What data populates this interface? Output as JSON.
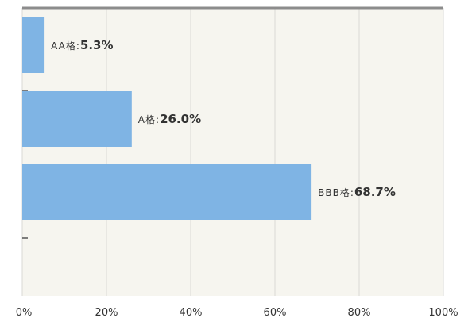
{
  "chart_data": {
    "type": "bar",
    "orientation": "horizontal",
    "categories": [
      "AA格",
      "A格",
      "BBB格"
    ],
    "values": [
      5.3,
      26.0,
      68.7
    ],
    "data_labels": [
      "5.3%",
      "26.0%",
      "68.7%"
    ],
    "separator": ":",
    "x_ticks": [
      "0%",
      "20%",
      "40%",
      "60%",
      "80%",
      "100%"
    ],
    "xlim": [
      0,
      100
    ],
    "grid": true,
    "legend": "none",
    "title": "",
    "xlabel": "",
    "ylabel": ""
  },
  "colors": {
    "bar": "#7fb4e4",
    "plot_background": "#f6f5ef",
    "grid": "#d9d9d4",
    "top_border": "#8c8c8c",
    "text": "#333333"
  }
}
